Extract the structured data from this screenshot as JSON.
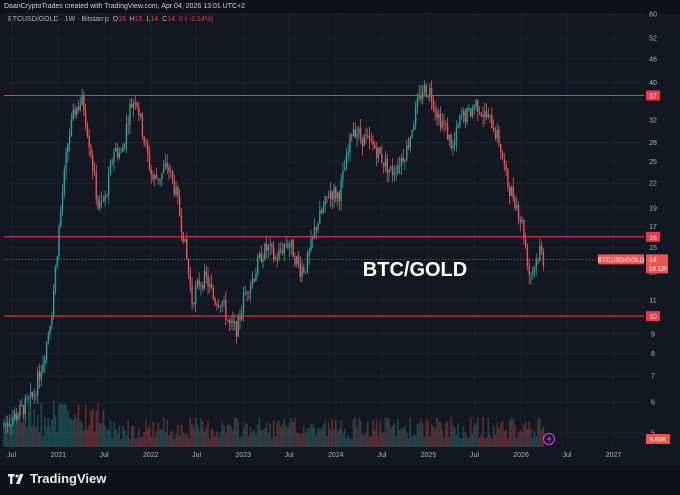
{
  "header": {
    "credit": "DaanCryptoTrades created with TradingView.com, Apr 04, 2026 13:01 UTC+2"
  },
  "legend": {
    "symbol": "BTCUSD/GOLD · 1W · Bitstamp",
    "o_label": "O",
    "o_value": "15",
    "h_label": "H",
    "h_value": "15",
    "l_label": "L",
    "l_value": "14",
    "c_label": "C",
    "c_value": "14",
    "change": "0 (−2.14%)"
  },
  "colors": {
    "background": "#131722",
    "up": "#26a69a",
    "down": "#ef5350",
    "level": "#f23645",
    "axis_text": "#b2b5be"
  },
  "icons": {
    "flash": "lightning-icon",
    "logo": "tradingview-logo-icon"
  },
  "footer": {
    "brand": "TradingView"
  },
  "chart_data": {
    "type": "candlestick",
    "title": "BTC/GOLD",
    "scale": "log",
    "ylim": [
      4.6,
      60
    ],
    "xlim": [
      "2020-06-01",
      "2027-05-01"
    ],
    "y_ticks": [
      5,
      6,
      7,
      8,
      9,
      10,
      11,
      13,
      14,
      15,
      17,
      19,
      22,
      25,
      28,
      32,
      36,
      40,
      46,
      52,
      60
    ],
    "x_ticks": [
      {
        "date": "2020-07-01",
        "label": "Jul"
      },
      {
        "date": "2021-01-01",
        "label": "2021"
      },
      {
        "date": "2021-07-01",
        "label": "Jul"
      },
      {
        "date": "2022-01-01",
        "label": "2022"
      },
      {
        "date": "2022-07-01",
        "label": "Jul"
      },
      {
        "date": "2023-01-01",
        "label": "2023"
      },
      {
        "date": "2023-07-01",
        "label": "Jul"
      },
      {
        "date": "2024-01-01",
        "label": "2024"
      },
      {
        "date": "2024-07-01",
        "label": "Jul"
      },
      {
        "date": "2025-01-01",
        "label": "2025"
      },
      {
        "date": "2025-07-01",
        "label": "Jul"
      },
      {
        "date": "2026-01-01",
        "label": "2026"
      },
      {
        "date": "2026-07-01",
        "label": "Jul"
      },
      {
        "date": "2027-01-01",
        "label": "2027"
      }
    ],
    "levels": [
      {
        "value": 37,
        "label": "37"
      },
      {
        "value": 16,
        "label": "16"
      },
      {
        "value": 10,
        "label": "10"
      }
    ],
    "price_tag": {
      "label": "BTCUSD/GOLD",
      "value": "14",
      "countdown": "1d 13h"
    },
    "volume_tag": "9.68K",
    "trend_points": [
      [
        "2020-06-01",
        5.2
      ],
      [
        "2020-08-01",
        5.6
      ],
      [
        "2020-10-01",
        6.2
      ],
      [
        "2020-11-15",
        8.0
      ],
      [
        "2020-12-15",
        10.5
      ],
      [
        "2021-01-15",
        18.0
      ],
      [
        "2021-02-15",
        28.0
      ],
      [
        "2021-03-15",
        34.0
      ],
      [
        "2021-04-15",
        36.0
      ],
      [
        "2021-05-15",
        27.0
      ],
      [
        "2021-06-15",
        19.0
      ],
      [
        "2021-07-15",
        20.0
      ],
      [
        "2021-08-15",
        27.0
      ],
      [
        "2021-09-15",
        26.0
      ],
      [
        "2021-10-15",
        34.0
      ],
      [
        "2021-11-10",
        37.0
      ],
      [
        "2021-12-15",
        28.0
      ],
      [
        "2022-01-15",
        22.5
      ],
      [
        "2022-02-15",
        23.0
      ],
      [
        "2022-03-15",
        24.5
      ],
      [
        "2022-04-15",
        21.0
      ],
      [
        "2022-05-15",
        16.5
      ],
      [
        "2022-06-20",
        11.0
      ],
      [
        "2022-07-20",
        12.3
      ],
      [
        "2022-08-15",
        12.5
      ],
      [
        "2022-09-15",
        11.0
      ],
      [
        "2022-10-15",
        11.0
      ],
      [
        "2022-11-15",
        9.4
      ],
      [
        "2022-12-15",
        9.3
      ],
      [
        "2023-01-20",
        11.8
      ],
      [
        "2023-02-15",
        12.5
      ],
      [
        "2023-03-20",
        14.4
      ],
      [
        "2023-04-15",
        15.0
      ],
      [
        "2023-05-15",
        14.0
      ],
      [
        "2023-06-25",
        15.5
      ],
      [
        "2023-07-15",
        15.2
      ],
      [
        "2023-08-20",
        13.2
      ],
      [
        "2023-09-15",
        13.5
      ],
      [
        "2023-10-20",
        17.0
      ],
      [
        "2023-11-15",
        18.5
      ],
      [
        "2023-12-15",
        21.0
      ],
      [
        "2024-01-20",
        20.5
      ],
      [
        "2024-02-25",
        26.0
      ],
      [
        "2024-03-15",
        31.0
      ],
      [
        "2024-04-15",
        29.0
      ],
      [
        "2024-05-15",
        28.0
      ],
      [
        "2024-06-15",
        27.0
      ],
      [
        "2024-07-15",
        25.0
      ],
      [
        "2024-08-15",
        23.5
      ],
      [
        "2024-09-15",
        25.0
      ],
      [
        "2024-10-15",
        27.0
      ],
      [
        "2024-11-15",
        33.0
      ],
      [
        "2024-12-15",
        38.5
      ],
      [
        "2025-01-15",
        38.0
      ],
      [
        "2025-02-15",
        33.0
      ],
      [
        "2025-03-15",
        30.5
      ],
      [
        "2025-04-15",
        27.0
      ],
      [
        "2025-05-15",
        32.5
      ],
      [
        "2025-06-15",
        33.0
      ],
      [
        "2025-07-15",
        35.5
      ],
      [
        "2025-08-15",
        33.0
      ],
      [
        "2025-09-15",
        31.5
      ],
      [
        "2025-10-15",
        28.0
      ],
      [
        "2025-11-15",
        22.0
      ],
      [
        "2025-12-15",
        20.0
      ],
      [
        "2026-01-15",
        17.0
      ],
      [
        "2026-02-10",
        12.8
      ],
      [
        "2026-03-01",
        13.5
      ],
      [
        "2026-03-25",
        15.0
      ],
      [
        "2026-04-04",
        14.0
      ]
    ]
  }
}
